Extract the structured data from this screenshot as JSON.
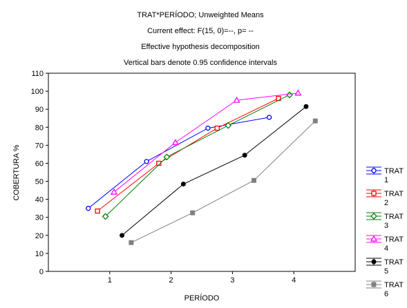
{
  "chart_data": {
    "type": "line",
    "title_lines": [
      "TRAT*PERÍODO; Unweighted Means",
      "Current effect: F(15, 0)=--, p= --",
      "Effective hypothesis decomposition",
      "Vertical bars denote 0.95 confidence intervals"
    ],
    "xlabel": "PERÍODO",
    "ylabel": "COBERTURA %",
    "categories": [
      "1",
      "2",
      "3",
      "4"
    ],
    "ylim": [
      0,
      110
    ],
    "yticks": [
      "0",
      "10",
      "20",
      "30",
      "40",
      "50",
      "60",
      "70",
      "80",
      "90",
      "100",
      "110"
    ],
    "legend_position": "right",
    "series": [
      {
        "name": "TRAT 1",
        "legend_lines": [
          "TRAT",
          "1"
        ],
        "color": "#0000ff",
        "marker": "circle",
        "x": [
          0.65,
          1.6,
          2.6,
          3.6
        ],
        "values": [
          35,
          61,
          79.5,
          85.5
        ]
      },
      {
        "name": "TRAT 2",
        "legend_lines": [
          "TRAT",
          "2"
        ],
        "color": "#ff0000",
        "marker": "square",
        "x": [
          0.8,
          1.8,
          2.75,
          3.75
        ],
        "values": [
          33.5,
          60,
          79.5,
          96
        ]
      },
      {
        "name": "TRAT 3",
        "legend_lines": [
          "TRAT",
          "3"
        ],
        "color": "#008000",
        "marker": "diamond",
        "x": [
          0.93,
          1.93,
          2.93,
          3.93
        ],
        "values": [
          30.5,
          63.5,
          81,
          98
        ]
      },
      {
        "name": "TRAT 4",
        "legend_lines": [
          "TRAT",
          "4"
        ],
        "color": "#ff00ff",
        "marker": "triangle",
        "x": [
          1.07,
          2.07,
          3.07,
          4.07
        ],
        "values": [
          44,
          71.5,
          95,
          99
        ]
      },
      {
        "name": "TRAT 5",
        "legend_lines": [
          "TRAT",
          "5"
        ],
        "color": "#000000",
        "marker": "dot",
        "x": [
          1.2,
          2.2,
          3.2,
          4.2
        ],
        "values": [
          20,
          48.5,
          64.5,
          91.5
        ]
      },
      {
        "name": "TRAT 6",
        "legend_lines": [
          "TRAT",
          "6"
        ],
        "color": "#808080",
        "marker": "filled-square",
        "x": [
          1.35,
          2.35,
          3.35,
          4.35
        ],
        "values": [
          16,
          32.5,
          50.5,
          83.5
        ]
      }
    ]
  }
}
